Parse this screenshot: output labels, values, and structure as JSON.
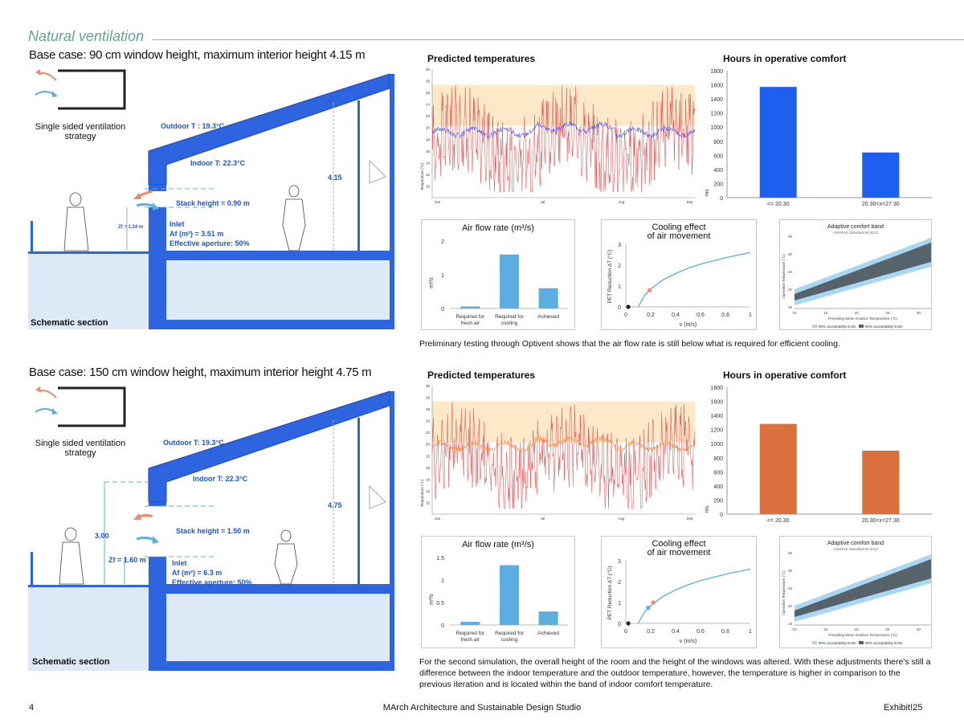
{
  "header": {
    "section_title": "Natural ventilation"
  },
  "case1": {
    "subtitle": "Base case: 90 cm window height, maximum interior height 4.15 m",
    "strategy": "Single sided ventilation strategy",
    "outdoor": "Outdoor T : 19.3°C",
    "indoor": "Indoor T: 22.3°C",
    "stack": "Stack height = 0.90 m",
    "height": "4.15",
    "zf": "Zf = 1.34 m",
    "inlet": "Inlet",
    "area": "Af (m²) = 3.51 m",
    "aperture": "Effective aperture: 50%",
    "section_label": "Schematic section",
    "caption": "Preliminary testing through Optivent shows that the air flow rate is still below what is required for efficient cooling."
  },
  "case2": {
    "subtitle": "Base case: 150 cm window height, maximum interior height 4.75 m",
    "strategy": "Single sided ventilation strategy",
    "outdoor": "Outdoor T: 19.3°C",
    "indoor": "Indoor T: 22.3°C",
    "stack": "Stack height = 1.50 m",
    "height": "4.75",
    "height2": "3.00",
    "zf": "Zf = 1.60 m",
    "inlet": "Inlet",
    "area": "Af (m²) = 6.3 m",
    "aperture": "Effective aperture: 50%",
    "section_label": "Schematic section",
    "caption": "For the second simulation, the overall height of the room and the height of the windows was altered. With these adjustments there's still a difference between the indoor temperature and the outdoor temperature, however, the temperature is higher in comparison to the previous iteration and is located within the band of indoor comfort temperature."
  },
  "labels": {
    "predicted": "Predicted temperatures",
    "hours": "Hours in operative comfort",
    "airflow": "Air flow rate (m³/s)",
    "cooling1": "Cooling effect",
    "cooling2": "of air movement",
    "adaptive": "Adaptive comfort band",
    "adaptive_sub": "ASHRAE Standard 55-2013",
    "temp_y": "Temperature (°C)",
    "months": [
      "Jun",
      "Jul",
      "Aug",
      "Sep"
    ],
    "legend80": "80% acceptability limits",
    "legend90": "90% acceptability limits",
    "cool_xlabel": "v (m/s)",
    "cool_ylabel": "PET Reduction ΔT (°C)",
    "flow_ylabel": "m³/s",
    "hrs_ylabel": "Hrs",
    "adapt_xlabel": "Prevailing Mean Outdoor Temperature (°C)",
    "adapt_ylabel": "Operative Temperature (°C)"
  },
  "chart_data": [
    {
      "id": "hours1",
      "type": "bar",
      "title": "Hours in operative comfort",
      "categories": [
        "<= 20.30",
        "20.30<x<27.30"
      ],
      "values": [
        1570,
        640
      ],
      "ylim": [
        0,
        1800
      ],
      "yticks": [
        0,
        200,
        400,
        600,
        800,
        1000,
        1200,
        1400,
        1600,
        1800
      ],
      "color": "#1f5ff0",
      "ylabel": "Hrs"
    },
    {
      "id": "hours2",
      "type": "bar",
      "title": "Hours in operative comfort",
      "categories": [
        "<= 20.30",
        "20.30<x<27.30"
      ],
      "values": [
        1280,
        900
      ],
      "ylim": [
        0,
        1800
      ],
      "yticks": [
        0,
        200,
        400,
        600,
        800,
        1000,
        1200,
        1400,
        1600,
        1800
      ],
      "color": "#d9703e",
      "ylabel": "Hrs"
    },
    {
      "id": "flow1",
      "type": "bar",
      "title": "Air flow rate (m³/s)",
      "categories": [
        "Required for fresh air",
        "Required for cooling",
        "Achieved"
      ],
      "values": [
        0.06,
        1.6,
        0.6
      ],
      "ylim": [
        0,
        2
      ],
      "yticks": [
        0,
        1,
        2
      ],
      "color": "#5aaee0",
      "ylabel": "m³/s"
    },
    {
      "id": "flow2",
      "type": "bar",
      "title": "Air flow rate (m³/s)",
      "categories": [
        "Required for fresh air",
        "Required for cooling",
        "Achieved"
      ],
      "values": [
        0.07,
        1.33,
        0.3
      ],
      "ylim": [
        0,
        1.5
      ],
      "yticks": [
        0,
        0.5,
        1,
        1.5
      ],
      "color": "#5aaee0",
      "ylabel": "m³/s"
    },
    {
      "id": "cool1",
      "type": "line",
      "title": "Cooling effect of air movement",
      "xlabel": "v (m/s)",
      "ylabel": "PET Reduction ΔT (°C)",
      "xlim": [
        0,
        1
      ],
      "ylim": [
        0,
        3
      ],
      "xticks": [
        0,
        0.2,
        0.4,
        0.6,
        0.8,
        1
      ],
      "yticks": [
        0,
        1,
        2,
        3
      ],
      "curve_x": [
        0.1,
        0.15,
        0.2,
        0.3,
        0.4,
        0.5,
        0.6,
        0.7,
        0.8,
        0.9,
        1.0
      ],
      "curve_y": [
        0,
        0.55,
        0.85,
        1.3,
        1.6,
        1.85,
        2.05,
        2.2,
        2.35,
        2.48,
        2.6
      ],
      "points": [
        {
          "x": 0.02,
          "y": 0,
          "color": "#222"
        },
        {
          "x": 0.19,
          "y": 0.8,
          "color": "#f08a6a"
        }
      ]
    },
    {
      "id": "cool2",
      "type": "line",
      "title": "Cooling effect of air movement",
      "xlabel": "v (m/s)",
      "ylabel": "PET Reduction ΔT (°C)",
      "xlim": [
        0,
        1
      ],
      "ylim": [
        0,
        3
      ],
      "xticks": [
        0,
        0.2,
        0.4,
        0.6,
        0.8,
        1
      ],
      "yticks": [
        0,
        1,
        2,
        3
      ],
      "curve_x": [
        0.1,
        0.15,
        0.2,
        0.3,
        0.4,
        0.5,
        0.6,
        0.7,
        0.8,
        0.9,
        1.0
      ],
      "curve_y": [
        0,
        0.55,
        0.85,
        1.3,
        1.6,
        1.85,
        2.05,
        2.2,
        2.35,
        2.48,
        2.6
      ],
      "points": [
        {
          "x": 0.02,
          "y": 0,
          "color": "#222"
        },
        {
          "x": 0.18,
          "y": 0.75,
          "color": "#5aaee0"
        },
        {
          "x": 0.22,
          "y": 1.0,
          "color": "#f08a6a"
        }
      ]
    },
    {
      "id": "temp1",
      "type": "line",
      "title": "Predicted temperatures",
      "ylabel": "Temperature (°C)",
      "ylim": [
        8,
        30
      ],
      "yticks": [
        10,
        12,
        14,
        16,
        18,
        20,
        22,
        24,
        26,
        28,
        30
      ],
      "band": [
        20.3,
        27.3
      ],
      "indoor_mean": 19.2,
      "outdoor_color": "#e04545",
      "indoor_color": "#5566ee",
      "months": [
        "Jun",
        "Jul",
        "Aug",
        "Sep"
      ]
    },
    {
      "id": "temp2",
      "type": "line",
      "title": "Predicted temperatures",
      "ylabel": "Temperature (°C)",
      "ylim": [
        8,
        30
      ],
      "yticks": [
        10,
        12,
        14,
        16,
        18,
        20,
        22,
        24,
        26,
        28,
        30
      ],
      "band": [
        20.3,
        27.3
      ],
      "indoor_mean": 19.6,
      "outdoor_color": "#e04545",
      "indoor_color": "#f0904a",
      "months": [
        "Jun",
        "Jul",
        "Aug",
        "Sep"
      ]
    },
    {
      "id": "adapt1",
      "type": "area",
      "title": "Adaptive comfort band",
      "xlabel": "Prevailing Mean Outdoor Temperature (°C)",
      "ylabel": "Operative Temperature (°C)",
      "xticks": [
        10,
        15,
        20,
        25,
        30
      ],
      "yticks": [
        15,
        20,
        25,
        30,
        35
      ],
      "point": {
        "x": 19,
        "y": 22.5
      }
    },
    {
      "id": "adapt2",
      "type": "area",
      "title": "Adaptive comfort band",
      "xlabel": "Prevailing Mean Outdoor Temperature (°C)",
      "ylabel": "Operative Temperature (°C)",
      "xticks": [
        10,
        15,
        20,
        25,
        30
      ],
      "yticks": [
        15,
        20,
        25,
        30,
        35
      ],
      "point": {
        "x": 19,
        "y": 22.5
      }
    }
  ],
  "footer": {
    "page": "4",
    "studio": "MArch Architecture and Sustainable Design Studio",
    "exhibit": "Exhibit!25"
  }
}
